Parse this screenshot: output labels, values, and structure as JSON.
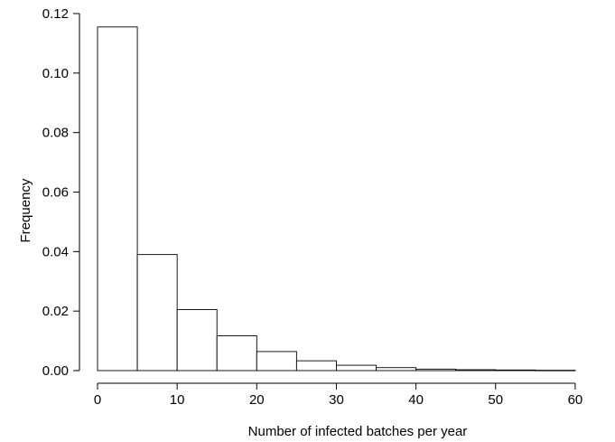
{
  "chart_data": {
    "type": "bar",
    "title": "",
    "xlabel": "Number of infected batches per year",
    "ylabel": "Frequency",
    "xlim": [
      0,
      65
    ],
    "ylim": [
      0,
      0.12
    ],
    "bin_width": 5,
    "bins": [
      {
        "x0": 0,
        "x1": 5,
        "value": 0.1155
      },
      {
        "x0": 5,
        "x1": 10,
        "value": 0.039
      },
      {
        "x0": 10,
        "x1": 15,
        "value": 0.0205
      },
      {
        "x0": 15,
        "x1": 20,
        "value": 0.0117
      },
      {
        "x0": 20,
        "x1": 25,
        "value": 0.0064
      },
      {
        "x0": 25,
        "x1": 30,
        "value": 0.0033
      },
      {
        "x0": 30,
        "x1": 35,
        "value": 0.0018
      },
      {
        "x0": 35,
        "x1": 40,
        "value": 0.001
      },
      {
        "x0": 40,
        "x1": 45,
        "value": 0.0005
      },
      {
        "x0": 45,
        "x1": 50,
        "value": 0.0003
      },
      {
        "x0": 50,
        "x1": 55,
        "value": 0.0002
      },
      {
        "x0": 55,
        "x1": 60,
        "value": 0.0001
      }
    ],
    "x_ticks": [
      0,
      10,
      20,
      30,
      40,
      50,
      60
    ],
    "x_tick_labels": [
      "0",
      "10",
      "20",
      "30",
      "40",
      "50",
      "60"
    ],
    "y_ticks": [
      0,
      0.02,
      0.04,
      0.06,
      0.08,
      0.1,
      0.12
    ],
    "y_tick_labels": [
      "0.00",
      "0.02",
      "0.04",
      "0.06",
      "0.08",
      "0.10",
      "0.12"
    ],
    "grid": false,
    "legend": "none",
    "colors": {
      "bar_fill": "#ffffff",
      "bar_stroke": "#000000"
    }
  }
}
